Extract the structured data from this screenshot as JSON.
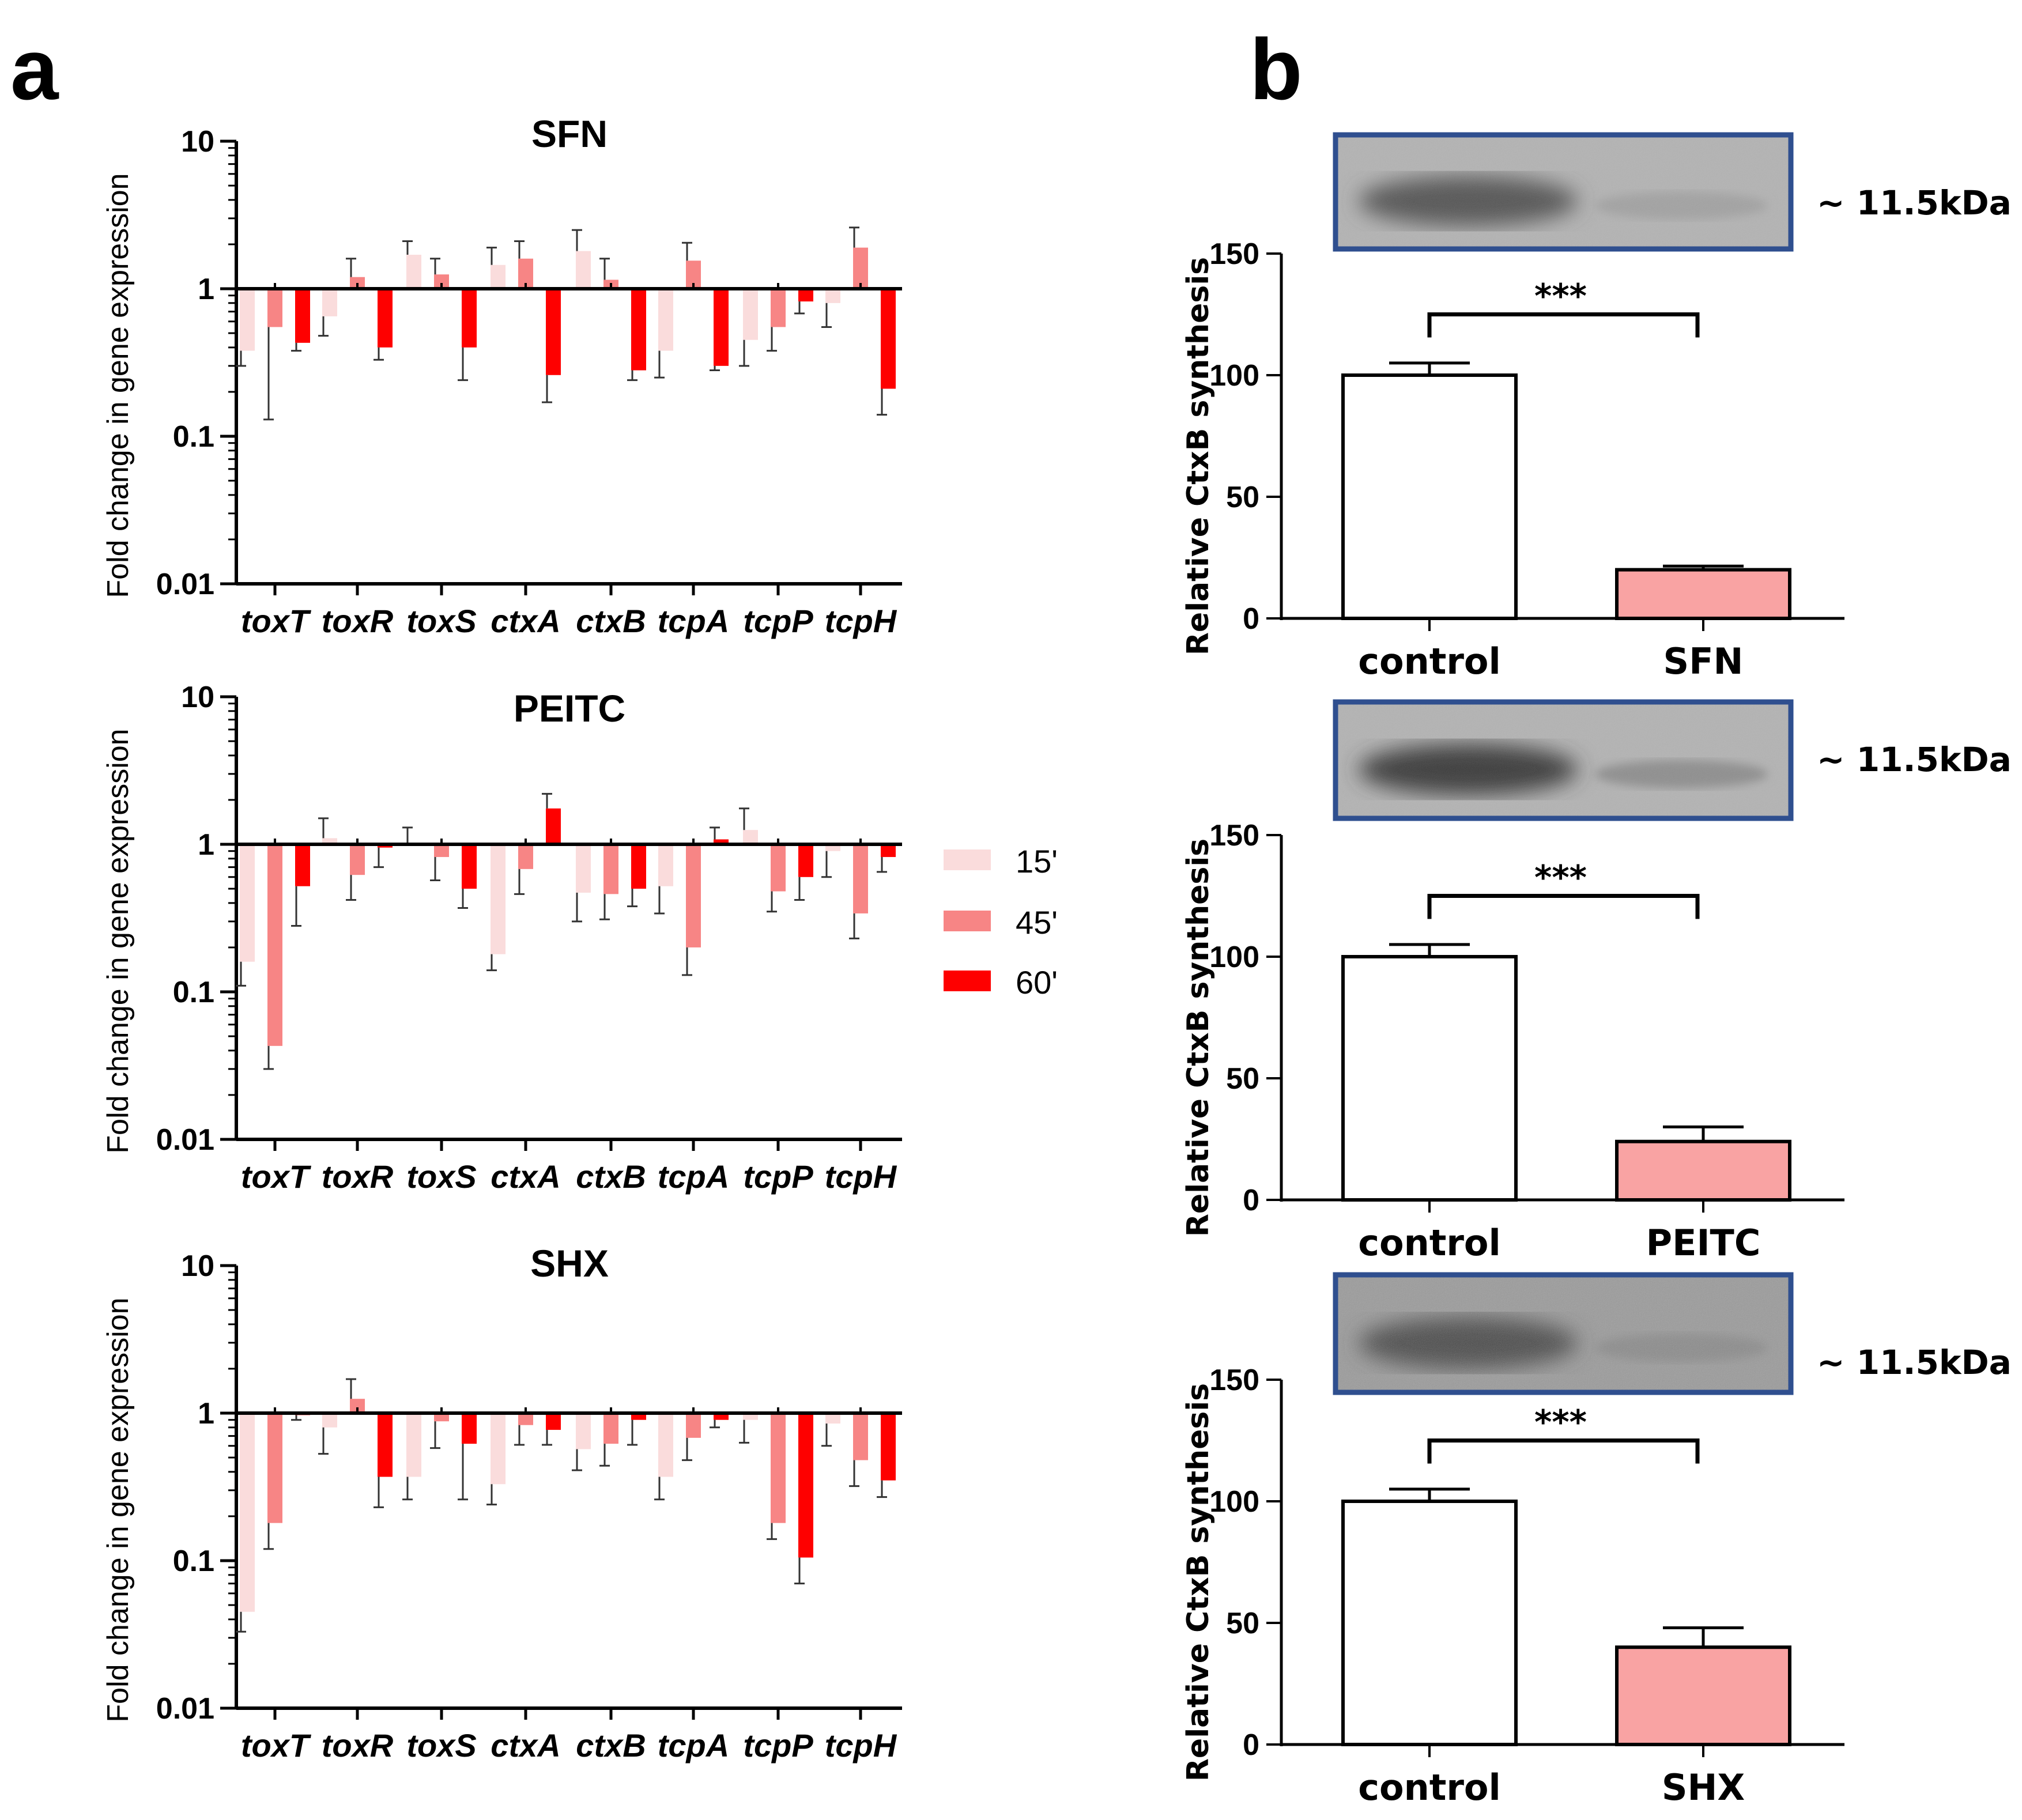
{
  "panels": {
    "a": "a",
    "b": "b"
  },
  "colors": {
    "t15": "#fadcdc",
    "t45": "#f78585",
    "t60": "#fe0000",
    "sample": "#f9a3a3",
    "control": "#ffffff",
    "blot_border": "#2f4f8f"
  },
  "legend": {
    "items": [
      {
        "label": "15'",
        "color": "#fadcdc"
      },
      {
        "label": "45'",
        "color": "#f78585"
      },
      {
        "label": "60'",
        "color": "#fe0000"
      }
    ]
  },
  "chart_data": [
    {
      "type": "bar",
      "scale": "log",
      "title": "SFN",
      "ylabel": "Fold change in gene expression",
      "yticks": [
        "10",
        "1",
        "0.1",
        "0.01"
      ],
      "ylim": [
        0.01,
        10
      ],
      "categories": [
        "toxT",
        "toxR",
        "toxS",
        "ctxA",
        "ctxB",
        "tcpA",
        "tcpP",
        "tcpH"
      ],
      "series": [
        {
          "name": "15'",
          "values": [
            0.38,
            0.65,
            1.7,
            1.45,
            1.8,
            0.38,
            0.45,
            0.8
          ],
          "errors": [
            0.3,
            0.48,
            2.1,
            1.9,
            2.5,
            0.25,
            0.3,
            0.55
          ]
        },
        {
          "name": "45'",
          "values": [
            0.55,
            1.2,
            1.25,
            1.6,
            1.15,
            1.55,
            0.55,
            1.9
          ],
          "errors": [
            0.13,
            1.6,
            1.6,
            2.1,
            1.6,
            2.05,
            0.38,
            2.6
          ]
        },
        {
          "name": "60'",
          "values": [
            0.43,
            0.4,
            0.4,
            0.26,
            0.28,
            0.3,
            0.82,
            0.21
          ],
          "errors": [
            0.38,
            0.33,
            0.24,
            0.17,
            0.24,
            0.28,
            0.68,
            0.14
          ]
        }
      ]
    },
    {
      "type": "bar",
      "scale": "log",
      "title": "PEITC",
      "ylabel": "Fold change in gene expression",
      "yticks": [
        "10",
        "1",
        "0.1",
        "0.01"
      ],
      "ylim": [
        0.01,
        10
      ],
      "categories": [
        "toxT",
        "toxR",
        "toxS",
        "ctxA",
        "ctxB",
        "tcpA",
        "tcpP",
        "tcpH"
      ],
      "series": [
        {
          "name": "15'",
          "values": [
            0.16,
            1.1,
            1.0,
            0.18,
            0.47,
            0.52,
            1.25,
            0.9
          ],
          "errors": [
            0.11,
            1.5,
            1.3,
            0.14,
            0.3,
            0.34,
            1.75,
            0.6
          ]
        },
        {
          "name": "45'",
          "values": [
            0.043,
            0.62,
            0.82,
            0.68,
            0.46,
            0.2,
            0.48,
            0.34
          ],
          "errors": [
            0.03,
            0.42,
            0.57,
            0.46,
            0.31,
            0.13,
            0.35,
            0.23
          ]
        },
        {
          "name": "60'",
          "values": [
            0.52,
            0.95,
            0.5,
            1.75,
            0.5,
            1.08,
            0.6,
            0.82
          ],
          "errors": [
            0.28,
            0.7,
            0.37,
            2.2,
            0.38,
            1.3,
            0.42,
            0.65
          ]
        }
      ]
    },
    {
      "type": "bar",
      "scale": "log",
      "title": "SHX",
      "ylabel": "Fold change in gene expression",
      "yticks": [
        "10",
        "1",
        "0.1",
        "0.01"
      ],
      "ylim": [
        0.01,
        10
      ],
      "categories": [
        "toxT",
        "toxR",
        "toxS",
        "ctxA",
        "ctxB",
        "tcpA",
        "tcpP",
        "tcpH"
      ],
      "series": [
        {
          "name": "15'",
          "values": [
            0.045,
            0.8,
            0.37,
            0.33,
            0.57,
            0.37,
            0.9,
            0.85
          ],
          "errors": [
            0.033,
            0.53,
            0.26,
            0.24,
            0.41,
            0.26,
            0.63,
            0.6
          ]
        },
        {
          "name": "45'",
          "values": [
            0.18,
            1.25,
            0.88,
            0.83,
            0.62,
            0.68,
            0.18,
            0.48
          ],
          "errors": [
            0.12,
            1.7,
            0.58,
            0.61,
            0.44,
            0.48,
            0.14,
            0.32
          ]
        },
        {
          "name": "60'",
          "values": [
            0.97,
            0.37,
            0.62,
            0.77,
            0.9,
            0.9,
            0.105,
            0.35
          ],
          "errors": [
            0.9,
            0.23,
            0.26,
            0.61,
            0.61,
            0.8,
            0.07,
            0.27
          ]
        }
      ]
    },
    {
      "type": "bar",
      "scale": "linear",
      "ylabel": "Relative CtxB synthesis",
      "yticks": [
        "150",
        "100",
        "50",
        "0"
      ],
      "ylim": [
        0,
        150
      ],
      "categories": [
        "control",
        "SFN"
      ],
      "values": [
        100,
        20
      ],
      "errors": [
        5,
        1.5
      ],
      "significance": "***",
      "blot_label": "~ 11.5kDa"
    },
    {
      "type": "bar",
      "scale": "linear",
      "ylabel": "Relative CtxB synthesis",
      "yticks": [
        "150",
        "100",
        "50",
        "0"
      ],
      "ylim": [
        0,
        150
      ],
      "categories": [
        "control",
        "PEITC"
      ],
      "values": [
        100,
        24
      ],
      "errors": [
        5,
        6
      ],
      "significance": "***",
      "blot_label": "~ 11.5kDa"
    },
    {
      "type": "bar",
      "scale": "linear",
      "ylabel": "Relative CtxB synthesis",
      "yticks": [
        "150",
        "100",
        "50",
        "0"
      ],
      "ylim": [
        0,
        150
      ],
      "categories": [
        "control",
        "SHX"
      ],
      "values": [
        100,
        40
      ],
      "errors": [
        5,
        8
      ],
      "significance": "***",
      "blot_label": "~ 11.5kDa"
    }
  ]
}
